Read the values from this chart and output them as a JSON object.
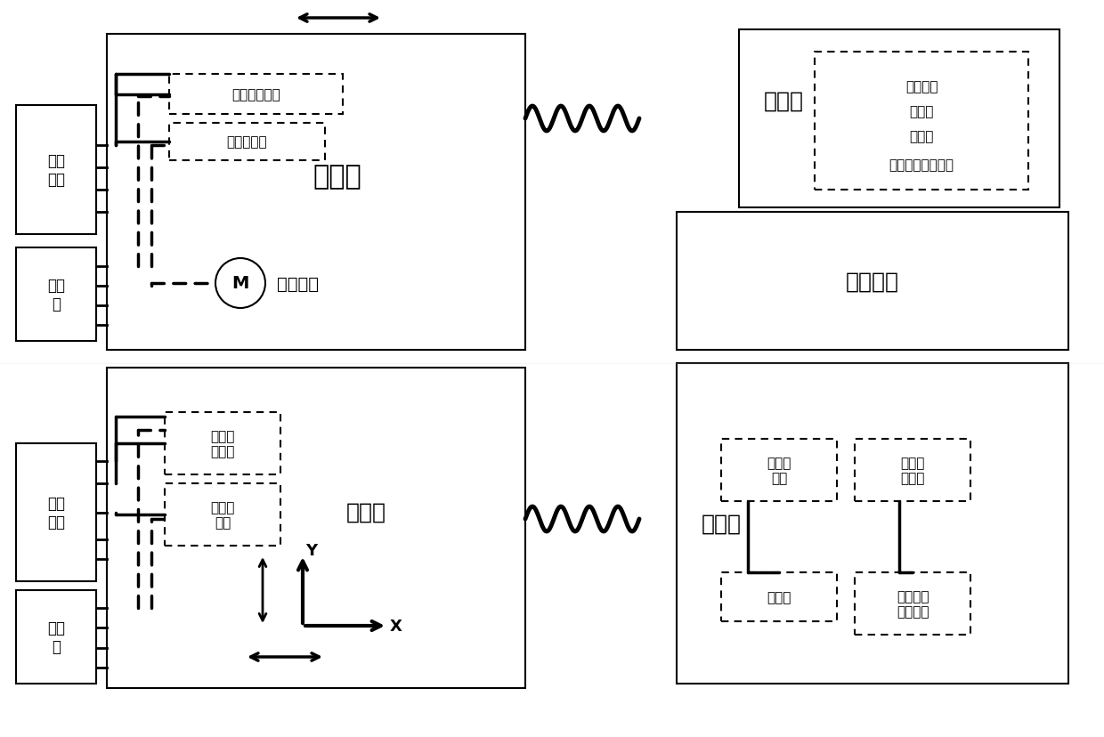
{
  "bg_color": "#ffffff",
  "line_color": "#000000",
  "top_diagram": {
    "platform_cabin_label": "平台舱",
    "payload_cabin_label": "载荷舱",
    "air_platform_label": "气浮平台",
    "power_box_label": "配电\n设备",
    "computer_box_label": "计算\n机",
    "accel_label": "三轴加速度计",
    "gyro_label": "三轴陀螺仪",
    "motor_label": "驱动电机",
    "payload_items_label": "加速度计\n陀螺仪\n蓄电池\n数据采集存储设备"
  },
  "bottom_diagram": {
    "platform_cabin_label": "平台舱",
    "payload_cabin_label": "载荷舱",
    "power_box_label": "配电\n设备",
    "computer_box_label": "计算\n机",
    "accel_label": "三轴加\n速度计",
    "gyro_label": "三轴陀\n螺仪",
    "accel2_label": "三轴加\n速度计",
    "gyro2_label": "三轴陀\n螺仪",
    "battery_label": "蓄电池",
    "data_label": "数据采集\n存储设备",
    "x_label": "X",
    "y_label": "Y"
  }
}
